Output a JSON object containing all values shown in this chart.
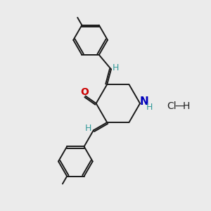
{
  "background_color": "#ebebeb",
  "bond_color": "#1a1a1a",
  "atom_colors": {
    "O": "#cc0000",
    "N": "#0000bb",
    "H_label": "#339999",
    "Cl_label": "#222222"
  },
  "figsize": [
    3.0,
    3.0
  ],
  "dpi": 100,
  "xlim": [
    0,
    10
  ],
  "ylim": [
    0,
    10
  ]
}
